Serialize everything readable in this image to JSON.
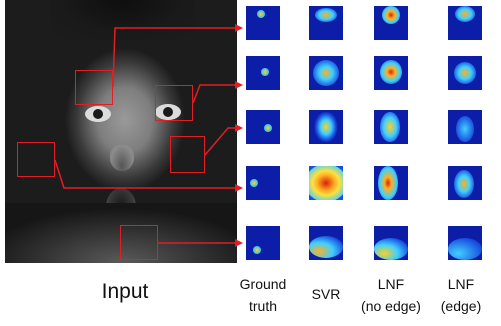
{
  "input_label": "Input",
  "column_labels": [
    {
      "line1": "Ground",
      "line2": "truth"
    },
    {
      "line1": "SVR",
      "line2": ""
    },
    {
      "line1": "LNF",
      "line2": "(no edge)"
    },
    {
      "line1": "LNF",
      "line2": "(edge)"
    }
  ],
  "colors": {
    "roi_box": "#e01e24",
    "heatmap_low": "#0c1ea8",
    "heatmap_high": "#d82010"
  }
}
